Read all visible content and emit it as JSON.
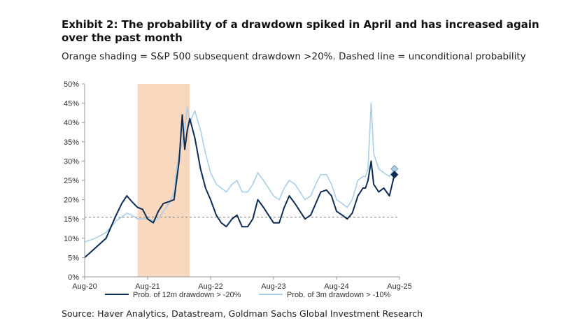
{
  "title": "Exhibit 2: The probability of a drawdown spiked in April and has increased again over the past month",
  "subtitle": "Orange shading = S&P 500 subsequent drawdown >20%. Dashed line = unconditional probability",
  "source": "Source: Haver Analytics, Datastream, Goldman Sachs Global Investment Research",
  "colors": {
    "series1": "#0d2c54",
    "series2": "#a9cfe8",
    "shading": "#f9d8c0",
    "dashed": "#7a7a7a"
  },
  "chart_data": {
    "type": "line",
    "title": "Exhibit 2: The probability of a drawdown spiked in April and has increased again over the past month",
    "xlabel": "",
    "ylabel": "",
    "ylim": [
      0,
      50
    ],
    "xlim": [
      2020.58,
      2025.58
    ],
    "y_ticks": [
      0,
      5,
      10,
      15,
      20,
      25,
      30,
      35,
      40,
      45,
      50
    ],
    "y_tick_labels": [
      "0%",
      "5%",
      "10%",
      "15%",
      "20%",
      "25%",
      "30%",
      "35%",
      "40%",
      "45%",
      "50%"
    ],
    "x_ticks": [
      2020.58,
      2021.58,
      2022.58,
      2023.58,
      2024.58,
      2025.58
    ],
    "x_tick_labels": [
      "Aug-20",
      "Aug-21",
      "Aug-22",
      "Aug-23",
      "Aug-24",
      "Aug-25"
    ],
    "unconditional_probability": 15.5,
    "shaded_region": {
      "from": 2021.42,
      "to": 2022.25,
      "label": "S&P 500 subsequent drawdown >20%"
    },
    "series": [
      {
        "name": "Prob. of 12m drawdown > -20%",
        "style": "solid-dark",
        "x": [
          2020.58,
          2020.75,
          2020.92,
          2021.0,
          2021.08,
          2021.17,
          2021.25,
          2021.33,
          2021.42,
          2021.5,
          2021.58,
          2021.67,
          2021.75,
          2021.83,
          2021.92,
          2022.0,
          2022.04,
          2022.08,
          2022.13,
          2022.17,
          2022.21,
          2022.25,
          2022.33,
          2022.42,
          2022.5,
          2022.58,
          2022.67,
          2022.75,
          2022.83,
          2022.92,
          2023.0,
          2023.08,
          2023.17,
          2023.25,
          2023.33,
          2023.42,
          2023.5,
          2023.58,
          2023.67,
          2023.75,
          2023.83,
          2023.92,
          2024.0,
          2024.08,
          2024.17,
          2024.25,
          2024.33,
          2024.42,
          2024.5,
          2024.58,
          2024.67,
          2024.75,
          2024.83,
          2024.92,
          2025.0,
          2025.04,
          2025.08,
          2025.13,
          2025.17,
          2025.25,
          2025.33,
          2025.42,
          2025.5
        ],
        "values": [
          5,
          7.5,
          10,
          13,
          16,
          19,
          21,
          19.5,
          18,
          17.5,
          15,
          14,
          17,
          19,
          19.5,
          20,
          25,
          30,
          42,
          33,
          38,
          41,
          36,
          28,
          23,
          20,
          16,
          14,
          13,
          15,
          16,
          13,
          13,
          15,
          20,
          18,
          16,
          14,
          14,
          18,
          21,
          19,
          17,
          15,
          16,
          19,
          22,
          22.5,
          21,
          17,
          16,
          15,
          16.5,
          21,
          23,
          23,
          25,
          30,
          24,
          22,
          23,
          21,
          26.5
        ]
      },
      {
        "name": "Prob. of 3m drawdown > -10%",
        "style": "solid-light",
        "x": [
          2020.58,
          2020.75,
          2020.92,
          2021.0,
          2021.08,
          2021.17,
          2021.25,
          2021.33,
          2021.42,
          2021.5,
          2021.58,
          2021.67,
          2021.75,
          2021.83,
          2021.92,
          2022.0,
          2022.04,
          2022.08,
          2022.13,
          2022.17,
          2022.21,
          2022.25,
          2022.33,
          2022.42,
          2022.5,
          2022.58,
          2022.67,
          2022.75,
          2022.83,
          2022.92,
          2023.0,
          2023.08,
          2023.17,
          2023.25,
          2023.33,
          2023.42,
          2023.5,
          2023.58,
          2023.67,
          2023.75,
          2023.83,
          2023.92,
          2024.0,
          2024.08,
          2024.17,
          2024.25,
          2024.33,
          2024.42,
          2024.5,
          2024.58,
          2024.67,
          2024.75,
          2024.83,
          2024.92,
          2025.0,
          2025.04,
          2025.08,
          2025.13,
          2025.17,
          2025.25,
          2025.33,
          2025.42,
          2025.5
        ],
        "values": [
          9,
          10,
          11.5,
          13,
          14.5,
          15.5,
          16.5,
          16,
          15,
          15,
          15,
          14.5,
          15,
          17,
          19,
          22,
          28,
          32,
          35,
          38,
          44,
          40,
          43,
          38,
          32,
          27,
          24,
          23,
          22,
          24,
          25,
          22,
          22,
          24,
          27,
          25,
          23,
          21,
          20,
          23,
          25,
          24,
          22,
          20,
          21,
          24,
          26.5,
          26.5,
          24,
          20,
          19,
          18,
          20,
          25,
          26,
          26,
          28,
          45,
          32,
          28,
          27,
          26,
          28
        ]
      }
    ],
    "legend": [
      "Prob. of 12m drawdown > -20%",
      "Prob. of 3m drawdown > -10%"
    ],
    "legend_placement": "bottom",
    "end_markers": [
      "diamond",
      "diamond"
    ]
  }
}
